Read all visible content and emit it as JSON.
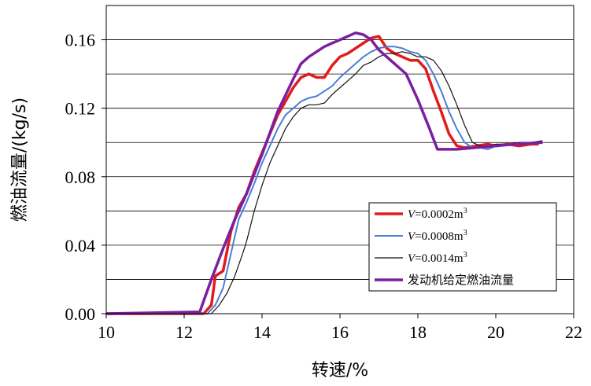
{
  "chart_data": {
    "type": "line",
    "xlabel": "转速/%",
    "ylabel": "燃油流量/(kg/s)",
    "xlim": [
      10,
      22
    ],
    "ylim": [
      0,
      0.18
    ],
    "xticks": [
      "10",
      "12",
      "14",
      "16",
      "18",
      "20",
      "22"
    ],
    "yticks": [
      "0.00",
      "0.04",
      "0.08",
      "0.12",
      "0.16"
    ],
    "ytick_values": [
      0,
      0.04,
      0.08,
      0.12,
      0.16
    ],
    "xtick_values": [
      10,
      12,
      14,
      16,
      18,
      20,
      22
    ],
    "grid": "horizontal",
    "legend_position": "lower-right",
    "series": [
      {
        "name": "V=0.0002m³",
        "legend_prefix": "V",
        "legend_suffix": "=0.0002m",
        "legend_sup": "3",
        "color": "#e31a1c",
        "width": 3.5,
        "x": [
          10,
          12.5,
          12.7,
          12.8,
          13.0,
          13.2,
          13.4,
          13.6,
          13.8,
          14.0,
          14.2,
          14.4,
          14.6,
          14.8,
          15.0,
          15.2,
          15.4,
          15.6,
          15.8,
          16.0,
          16.2,
          16.4,
          16.6,
          16.8,
          17.0,
          17.2,
          17.4,
          17.6,
          17.8,
          18.0,
          18.2,
          18.4,
          18.6,
          18.8,
          19.0,
          19.2,
          19.5,
          19.8,
          20.0,
          20.3,
          20.6,
          20.9,
          21.1
        ],
        "y": [
          0.0,
          0.0,
          0.005,
          0.022,
          0.025,
          0.048,
          0.062,
          0.07,
          0.083,
          0.094,
          0.105,
          0.116,
          0.124,
          0.132,
          0.138,
          0.14,
          0.138,
          0.138,
          0.145,
          0.15,
          0.152,
          0.155,
          0.158,
          0.161,
          0.162,
          0.155,
          0.152,
          0.15,
          0.148,
          0.148,
          0.143,
          0.13,
          0.118,
          0.105,
          0.098,
          0.097,
          0.098,
          0.099,
          0.098,
          0.099,
          0.098,
          0.099,
          0.099
        ]
      },
      {
        "name": "V=0.0008m³",
        "legend_prefix": "V",
        "legend_suffix": "=0.0008m",
        "legend_sup": "3",
        "color": "#4a7fd4",
        "width": 2,
        "x": [
          10,
          12.6,
          12.8,
          13.0,
          13.2,
          13.4,
          13.6,
          13.8,
          14.0,
          14.2,
          14.4,
          14.6,
          14.8,
          15.0,
          15.2,
          15.4,
          15.6,
          15.8,
          16.0,
          16.2,
          16.4,
          16.6,
          16.8,
          17.0,
          17.2,
          17.4,
          17.6,
          17.8,
          18.0,
          18.2,
          18.4,
          18.6,
          18.8,
          19.0,
          19.2,
          19.4,
          19.6,
          19.8,
          20.0,
          20.3,
          20.6,
          20.9,
          21.2
        ],
        "y": [
          0.0,
          0.0,
          0.005,
          0.015,
          0.035,
          0.055,
          0.065,
          0.076,
          0.088,
          0.098,
          0.108,
          0.116,
          0.12,
          0.124,
          0.126,
          0.127,
          0.13,
          0.133,
          0.138,
          0.142,
          0.146,
          0.15,
          0.153,
          0.155,
          0.156,
          0.156,
          0.155,
          0.153,
          0.152,
          0.148,
          0.14,
          0.13,
          0.118,
          0.108,
          0.1,
          0.097,
          0.097,
          0.096,
          0.098,
          0.099,
          0.099,
          0.1,
          0.1
        ]
      },
      {
        "name": "V=0.0014m³",
        "legend_prefix": "V",
        "legend_suffix": "=0.0014m",
        "legend_sup": "3",
        "color": "#111111",
        "width": 1.2,
        "x": [
          10,
          12.7,
          12.9,
          13.1,
          13.3,
          13.5,
          13.6,
          13.8,
          14.0,
          14.2,
          14.4,
          14.6,
          14.8,
          15.0,
          15.2,
          15.4,
          15.6,
          15.8,
          16.0,
          16.2,
          16.4,
          16.6,
          16.8,
          17.0,
          17.2,
          17.4,
          17.6,
          17.8,
          18.0,
          18.2,
          18.4,
          18.6,
          18.8,
          19.0,
          19.2,
          19.4,
          19.6,
          19.8,
          20.0,
          20.3,
          20.6,
          20.9,
          21.2
        ],
        "y": [
          0.0,
          0.0,
          0.005,
          0.012,
          0.022,
          0.035,
          0.042,
          0.06,
          0.075,
          0.088,
          0.098,
          0.108,
          0.115,
          0.12,
          0.122,
          0.122,
          0.123,
          0.128,
          0.132,
          0.136,
          0.14,
          0.145,
          0.147,
          0.15,
          0.152,
          0.152,
          0.153,
          0.152,
          0.15,
          0.15,
          0.148,
          0.142,
          0.133,
          0.122,
          0.11,
          0.1,
          0.098,
          0.098,
          0.099,
          0.099,
          0.1,
          0.1,
          0.101
        ]
      },
      {
        "name": "发动机给定燃油流量",
        "legend_prefix": "",
        "legend_suffix": "发动机给定燃油流量",
        "legend_sup": "",
        "color": "#7b1fa2",
        "width": 3.5,
        "x": [
          10,
          12.4,
          12.7,
          13.0,
          13.3,
          13.6,
          14.0,
          14.4,
          14.8,
          15.0,
          15.2,
          15.4,
          15.6,
          15.8,
          16.0,
          16.2,
          16.4,
          16.6,
          16.8,
          17.0,
          17.4,
          17.7,
          18.0,
          18.3,
          18.5,
          19.0,
          19.5,
          20.0,
          20.5,
          21.2
        ],
        "y": [
          0.0,
          0.001,
          0.02,
          0.038,
          0.055,
          0.07,
          0.093,
          0.118,
          0.137,
          0.146,
          0.15,
          0.153,
          0.156,
          0.158,
          0.16,
          0.162,
          0.164,
          0.163,
          0.16,
          0.154,
          0.146,
          0.14,
          0.125,
          0.108,
          0.096,
          0.096,
          0.097,
          0.098,
          0.099,
          0.1
        ]
      }
    ]
  }
}
